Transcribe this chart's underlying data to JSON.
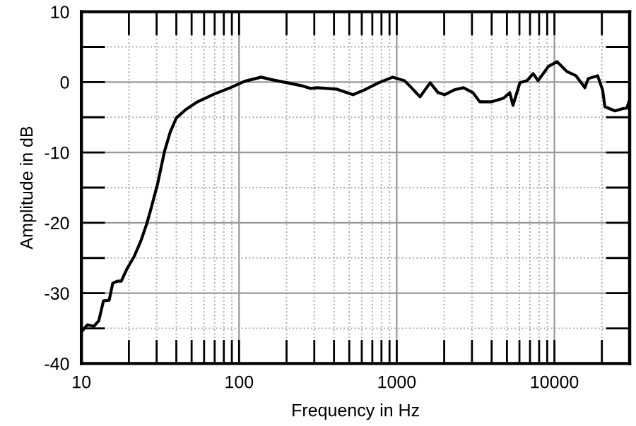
{
  "chart_data": {
    "type": "line",
    "xlabel": "Frequency in Hz",
    "ylabel": "Amplitude in dB",
    "log": "x",
    "grid": true,
    "marker": "none",
    "line_style": "solid",
    "xlim": [
      10,
      30000
    ],
    "ylim": [
      -40,
      10
    ],
    "xticks": [
      10,
      {
        "value": 20,
        "label": null
      },
      {
        "value": 30,
        "label": null
      },
      {
        "value": 40,
        "label": null
      },
      {
        "value": 50,
        "label": null
      },
      {
        "value": 60,
        "label": null
      },
      {
        "value": 70,
        "label": null
      },
      {
        "value": 80,
        "label": null
      },
      {
        "value": 90,
        "label": null
      },
      100,
      {
        "value": 200,
        "label": null
      },
      {
        "value": 300,
        "label": null
      },
      {
        "value": 400,
        "label": null
      },
      {
        "value": 500,
        "label": null
      },
      {
        "value": 600,
        "label": null
      },
      {
        "value": 700,
        "label": null
      },
      {
        "value": 800,
        "label": null
      },
      {
        "value": 900,
        "label": null
      },
      1000,
      {
        "value": 2000,
        "label": null
      },
      {
        "value": 3000,
        "label": null
      },
      {
        "value": 4000,
        "label": null
      },
      {
        "value": 5000,
        "label": null
      },
      {
        "value": 6000,
        "label": null
      },
      {
        "value": 7000,
        "label": null
      },
      {
        "value": 8000,
        "label": null
      },
      {
        "value": 9000,
        "label": null
      },
      10000,
      {
        "value": 20000,
        "label": null
      }
    ],
    "yticks": [
      -40,
      {
        "value": -35,
        "label": null
      },
      -30,
      {
        "value": -25,
        "label": null
      },
      -20,
      {
        "value": -15,
        "label": null
      },
      -10,
      {
        "value": -5,
        "label": null
      },
      0,
      {
        "value": 5,
        "label": null
      },
      10
    ],
    "series": [
      {
        "color": "#000000",
        "x": [
          10,
          10.9,
          12.0,
          12.9,
          13.8,
          15.0,
          15.8,
          16.9,
          17.9,
          19.5,
          21.6,
          23.9,
          26,
          27.4,
          30.4,
          33.7,
          36.6,
          40,
          46,
          54.5,
          69.5,
          88,
          108,
          138,
          164,
          202,
          247,
          283,
          313,
          414,
          528,
          625,
          768,
          943,
          1120,
          1240,
          1405,
          1630,
          1830,
          2010,
          2320,
          2650,
          3040,
          3360,
          4000,
          4760,
          5210,
          5460,
          6040,
          6700,
          7330,
          7880,
          9140,
          10400,
          12000,
          13700,
          15600,
          16400,
          18800,
          20200,
          20900,
          24200,
          26900,
          28800,
          29900
        ],
        "values": [
          -35.5,
          -34.5,
          -34.7,
          -33.9,
          -31.1,
          -31,
          -28.6,
          -28.3,
          -28.3,
          -26.5,
          -24.8,
          -22.5,
          -20.1,
          -18.3,
          -14.5,
          -9.8,
          -7.1,
          -5.1,
          -3.9,
          -2.8,
          -1.7,
          -0.8,
          0.1,
          0.7,
          0.3,
          -0.1,
          -0.5,
          -0.9,
          -0.8,
          -1,
          -1.8,
          -1.1,
          -0.1,
          0.7,
          0.2,
          -0.8,
          -2.1,
          -0.1,
          -1.5,
          -1.8,
          -1.1,
          -0.8,
          -1.5,
          -2.8,
          -2.8,
          -2.3,
          -1.5,
          -3.3,
          -0.1,
          0.2,
          1.2,
          0.2,
          2.2,
          2.9,
          1.5,
          0.9,
          -0.8,
          0.5,
          0.9,
          -1.1,
          -3.5,
          -4.1,
          -3.8,
          -3.7,
          -2.6
        ]
      }
    ]
  }
}
